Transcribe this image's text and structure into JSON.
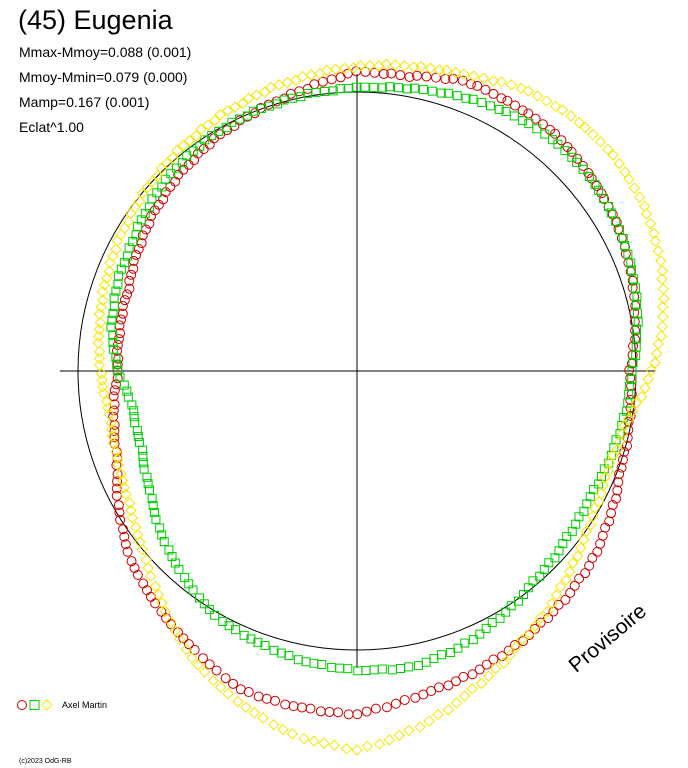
{
  "title": "(45) Eugenia",
  "stats": [
    "Mmax-Mmoy=0.088 (0.001)",
    "Mmoy-Mmin=0.079 (0.000)",
    "Mamp=0.167 (0.001)",
    "Eclat^1.00"
  ],
  "watermark": "Provisoire",
  "credit": "(c)2023 OdG-RB",
  "legend": {
    "label": "Axel Martin"
  },
  "colors": {
    "circle": "#cc0000",
    "square": "#00cc00",
    "diamond": "#f5e600",
    "axis": "#000000"
  },
  "chart_data": {
    "type": "scatter",
    "projection": "polar",
    "ref_circle_magnitude": 0.0,
    "series": [
      {
        "name": "Axel Martin",
        "marker": "circle",
        "color": "#cc0000",
        "points": [
          [
            90,
            -0.003
          ],
          [
            110,
            0.001
          ],
          [
            130,
            0.012
          ],
          [
            150,
            0.019
          ],
          [
            170,
            0.026
          ],
          [
            180,
            0.032
          ],
          [
            200,
            0.03
          ],
          [
            210,
            0.022
          ],
          [
            230,
            0.008
          ],
          [
            250,
            -0.012
          ],
          [
            270,
            -0.02
          ],
          [
            290,
            -0.018
          ],
          [
            310,
            -0.01
          ],
          [
            330,
            -0.003
          ],
          [
            340,
            0.0
          ],
          [
            350,
            0.004
          ],
          [
            0,
            0.01
          ],
          [
            10,
            0.01
          ],
          [
            20,
            0.015
          ],
          [
            40,
            0.015
          ],
          [
            60,
            0.01
          ],
          [
            75,
            0.004
          ]
        ]
      },
      {
        "name": "Axel Martin",
        "marker": "square",
        "color": "#00cc00",
        "points": [
          [
            90,
            -0.002
          ],
          [
            100,
            -0.004
          ],
          [
            110,
            -0.006
          ],
          [
            120,
            -0.007
          ],
          [
            130,
            -0.005
          ],
          [
            140,
            -0.002
          ],
          [
            150,
            0.003
          ],
          [
            160,
            0.008
          ],
          [
            170,
            0.011
          ],
          [
            180,
            0.01
          ],
          [
            190,
            0.008
          ],
          [
            200,
            0.005
          ],
          [
            210,
            0.002
          ],
          [
            220,
            -0.005
          ],
          [
            230,
            -0.012
          ],
          [
            240,
            -0.02
          ],
          [
            250,
            -0.025
          ],
          [
            260,
            -0.026
          ],
          [
            265,
            -0.024
          ],
          [
            270,
            -0.02
          ],
          [
            280,
            -0.015
          ],
          [
            290,
            -0.012
          ],
          [
            300,
            -0.01
          ],
          [
            310,
            -0.006
          ],
          [
            320,
            -0.003
          ],
          [
            330,
            -0.001
          ],
          [
            340,
            0.0
          ],
          [
            350,
            0.001
          ],
          [
            0,
            0.002
          ],
          [
            10,
            0.004
          ],
          [
            20,
            0.007
          ],
          [
            30,
            0.01
          ],
          [
            40,
            0.012
          ],
          [
            50,
            0.012
          ],
          [
            60,
            0.01
          ],
          [
            70,
            0.007
          ],
          [
            80,
            0.003
          ]
        ]
      },
      {
        "name": "Axel Martin",
        "marker": "diamond",
        "color": "#f5e600",
        "points": [
          [
            20,
            0.018
          ],
          [
            30,
            0.024
          ],
          [
            40,
            0.027
          ],
          [
            50,
            0.028
          ],
          [
            60,
            0.026
          ],
          [
            70,
            0.022
          ],
          [
            80,
            0.016
          ],
          [
            90,
            0.008
          ],
          [
            100,
            -0.002
          ],
          [
            110,
            -0.005
          ],
          [
            120,
            -0.002
          ],
          [
            130,
            0.004
          ],
          [
            140,
            0.012
          ],
          [
            150,
            0.02
          ],
          [
            160,
            0.03
          ],
          [
            170,
            0.041
          ],
          [
            180,
            0.05
          ],
          [
            190,
            0.045
          ],
          [
            200,
            0.036
          ],
          [
            210,
            0.026
          ],
          [
            220,
            0.012
          ],
          [
            230,
            0.0
          ],
          [
            240,
            -0.008
          ],
          [
            250,
            -0.012
          ],
          [
            260,
            -0.014
          ]
        ]
      }
    ]
  }
}
